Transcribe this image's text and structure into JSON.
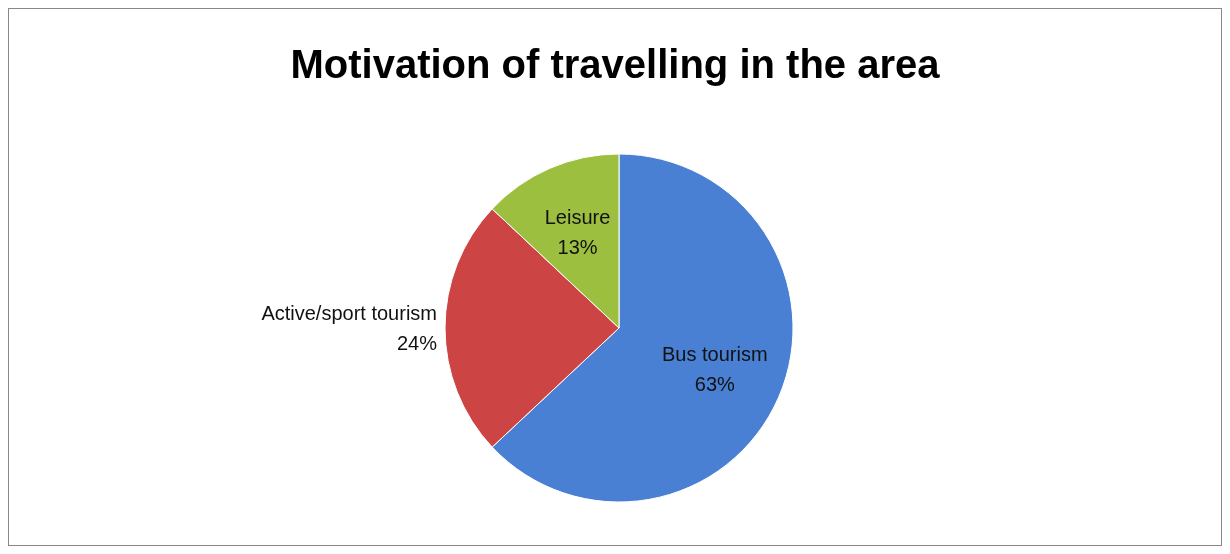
{
  "chart_data": {
    "type": "pie",
    "title": "Motivation of travelling in the area",
    "categories": [
      "Bus tourism",
      "Active/sport tourism",
      "Leisure"
    ],
    "values": [
      63,
      24,
      13
    ],
    "colors": [
      "#4a80d4",
      "#cc4444",
      "#9dbf3f"
    ],
    "value_labels": [
      "63%",
      "24%",
      "13%"
    ]
  }
}
